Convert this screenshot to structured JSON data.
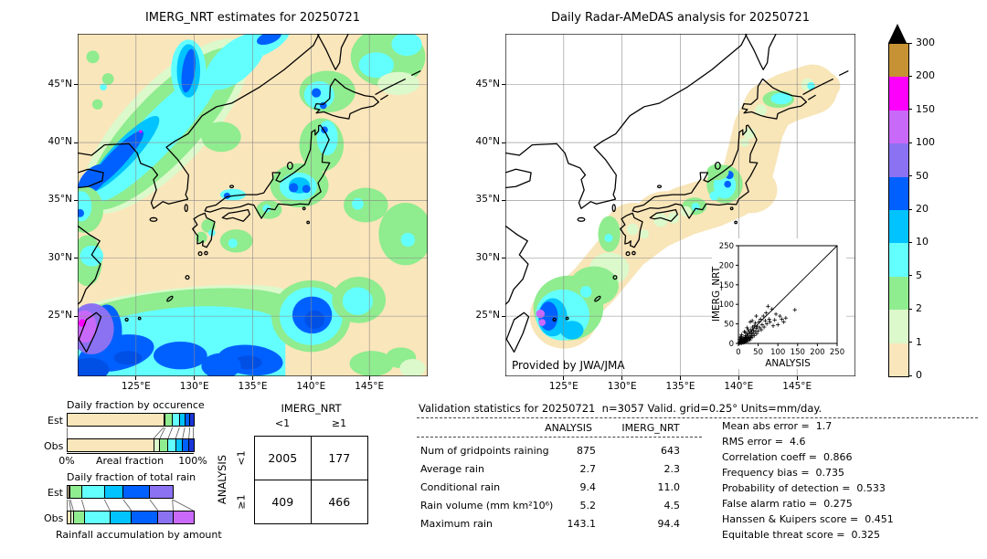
{
  "palette": {
    "wheat": "#FAE6BB",
    "palegreen": "#DCF9CB",
    "green": "#8FEC8F",
    "cyan": "#63FFFF",
    "deepcyan": "#00C3FF",
    "blue": "#0060FF",
    "navy": "#1A35D6",
    "purple": "#8B72F2",
    "orchid": "#C969FA",
    "magenta": "#FC00FC",
    "gold": "#C69233",
    "overflow": "#000000"
  },
  "maps": {
    "left_title": "IMERG_NRT estimates for 20250721",
    "right_title": "Daily Radar-AMeDAS analysis for 20250721",
    "credit": "Provided by JWA/JMA",
    "x_ticks": [
      "125°E",
      "130°E",
      "135°E",
      "140°E",
      "145°E"
    ],
    "y_ticks": [
      "45°N",
      "40°N",
      "35°N",
      "30°N",
      "25°N"
    ]
  },
  "colorbar": {
    "levels": [
      "0",
      "1",
      "2",
      "5",
      "10",
      "20",
      "50",
      "100",
      "150",
      "200",
      "300"
    ],
    "colors": [
      "wheat",
      "palegreen",
      "green",
      "cyan",
      "deepcyan",
      "blue",
      "purple",
      "orchid",
      "magenta",
      "gold"
    ]
  },
  "inset": {
    "xlabel": "ANALYSIS",
    "ylabel": "IMERG_NRT",
    "tick_labels": [
      "0",
      "50",
      "100",
      "150",
      "200",
      "250"
    ]
  },
  "occurrence": {
    "title": "Daily fraction by occurence",
    "row_labels": [
      "Est",
      "Obs"
    ],
    "axis_left": "0%",
    "axis_label": "Areal fraction",
    "axis_right": "100%"
  },
  "total_rain": {
    "title": "Daily fraction of total rain",
    "row_labels": [
      "Est",
      "Obs"
    ],
    "footer": "Rainfall accumulation by amount"
  },
  "contingency": {
    "col_title": "IMERG_NRT",
    "row_title": "ANALYSIS",
    "col_labels": [
      "<1",
      "≥1"
    ],
    "row_labels": [
      "<1",
      "≥1"
    ]
  },
  "stats": {
    "header": "Validation statistics for 20250721  n=3057 Valid. grid=0.25° Units=mm/day.",
    "col1": "ANALYSIS",
    "col2": "IMERG_NRT"
  },
  "chart_data": [
    {
      "type": "heatmap",
      "subtype": "filled-contour-map",
      "title": "IMERG_NRT estimates for 20250721",
      "units": "mm/day",
      "x_tick_labels": [
        "125°E",
        "130°E",
        "135°E",
        "140°E",
        "145°E"
      ],
      "y_tick_labels": [
        "45°N",
        "40°N",
        "35°N",
        "30°N",
        "25°N"
      ],
      "levels": [
        0,
        1,
        2,
        5,
        10,
        20,
        50,
        100,
        150,
        200,
        300
      ],
      "level_colors": [
        "wheat",
        "palegreen",
        "green",
        "cyan",
        "deepcyan",
        "blue",
        "purple",
        "orchid",
        "magenta",
        "gold"
      ],
      "overflow_color": "black"
    },
    {
      "type": "heatmap",
      "subtype": "filled-contour-map",
      "title": "Daily Radar-AMeDAS analysis for 20250721",
      "units": "mm/day",
      "credit": "Provided by JWA/JMA",
      "x_tick_labels": [
        "125°E",
        "130°E",
        "135°E",
        "140°E",
        "145°E"
      ],
      "y_tick_labels": [
        "45°N",
        "40°N",
        "35°N",
        "30°N",
        "25°N"
      ],
      "levels": [
        0,
        1,
        2,
        5,
        10,
        20,
        50,
        100,
        150,
        200,
        300
      ]
    },
    {
      "type": "scatter",
      "xlabel": "ANALYSIS",
      "ylabel": "IMERG_NRT",
      "xlim": [
        0,
        250
      ],
      "ylim": [
        0,
        250
      ],
      "diagonal": true,
      "marker": "+",
      "points": [
        [
          2,
          1
        ],
        [
          3,
          4
        ],
        [
          4,
          2
        ],
        [
          5,
          6
        ],
        [
          5,
          1
        ],
        [
          6,
          3
        ],
        [
          7,
          8
        ],
        [
          8,
          5
        ],
        [
          8,
          1
        ],
        [
          9,
          12
        ],
        [
          10,
          3
        ],
        [
          10,
          8
        ],
        [
          11,
          6
        ],
        [
          12,
          2
        ],
        [
          12,
          14
        ],
        [
          13,
          9
        ],
        [
          14,
          5
        ],
        [
          15,
          12
        ],
        [
          15,
          3
        ],
        [
          16,
          8
        ],
        [
          17,
          15
        ],
        [
          18,
          6
        ],
        [
          18,
          20
        ],
        [
          19,
          11
        ],
        [
          20,
          4
        ],
        [
          20,
          16
        ],
        [
          21,
          9
        ],
        [
          22,
          24
        ],
        [
          23,
          14
        ],
        [
          24,
          7
        ],
        [
          25,
          19
        ],
        [
          26,
          12
        ],
        [
          27,
          30
        ],
        [
          28,
          16
        ],
        [
          29,
          9
        ],
        [
          30,
          24
        ],
        [
          31,
          14
        ],
        [
          32,
          35
        ],
        [
          33,
          20
        ],
        [
          34,
          28
        ],
        [
          35,
          16
        ],
        [
          36,
          42
        ],
        [
          37,
          25
        ],
        [
          38,
          33
        ],
        [
          40,
          20
        ],
        [
          40,
          45
        ],
        [
          42,
          30
        ],
        [
          43,
          52
        ],
        [
          45,
          38
        ],
        [
          46,
          25
        ],
        [
          48,
          44
        ],
        [
          50,
          32
        ],
        [
          52,
          55
        ],
        [
          54,
          40
        ],
        [
          56,
          62
        ],
        [
          58,
          35
        ],
        [
          60,
          48
        ],
        [
          63,
          70
        ],
        [
          65,
          42
        ],
        [
          68,
          58
        ],
        [
          70,
          78
        ],
        [
          72,
          50
        ],
        [
          75,
          95
        ],
        [
          78,
          62
        ],
        [
          80,
          55
        ],
        [
          85,
          88
        ],
        [
          88,
          45
        ],
        [
          92,
          60
        ],
        [
          95,
          75
        ],
        [
          100,
          48
        ],
        [
          105,
          70
        ],
        [
          110,
          62
        ],
        [
          115,
          55
        ],
        [
          120,
          65
        ],
        [
          143,
          86
        ],
        [
          30,
          55
        ],
        [
          22,
          40
        ],
        [
          15,
          30
        ],
        [
          8,
          22
        ],
        [
          45,
          70
        ],
        [
          35,
          58
        ],
        [
          5,
          15
        ],
        [
          3,
          10
        ],
        [
          7,
          18
        ],
        [
          25,
          35
        ],
        [
          18,
          28
        ]
      ]
    },
    {
      "type": "bar",
      "stacked": true,
      "orientation": "horizontal",
      "title": "Daily fraction by occurence",
      "categories": [
        "Est",
        "Obs"
      ],
      "xlabel": "Areal fraction",
      "xlim_labels": [
        "0%",
        "100%"
      ],
      "series_colors": [
        "wheat",
        "palegreen",
        "green",
        "cyan",
        "deepcyan",
        "blue",
        "navy"
      ],
      "est": [
        0.765,
        0.012,
        0.058,
        0.055,
        0.042,
        0.04,
        0.028
      ],
      "obs": [
        0.685,
        0.05,
        0.065,
        0.06,
        0.055,
        0.05,
        0.035
      ]
    },
    {
      "type": "bar",
      "stacked": true,
      "orientation": "horizontal",
      "title": "Daily fraction of total rain",
      "categories": [
        "Est",
        "Obs"
      ],
      "xlabel": "Rainfall accumulation by amount",
      "series_colors": [
        "wheat",
        "palegreen",
        "green",
        "cyan",
        "deepcyan",
        "blue",
        "purple",
        "orchid"
      ],
      "est": [
        0.015,
        0.01,
        0.09,
        0.18,
        0.15,
        0.21,
        0.18,
        0.0
      ],
      "obs": [
        0.03,
        0.02,
        0.09,
        0.2,
        0.17,
        0.21,
        0.12,
        0.16
      ]
    },
    {
      "type": "table",
      "name": "contingency",
      "col_group": "IMERG_NRT",
      "row_group": "ANALYSIS",
      "col_labels": [
        "<1",
        "≥1"
      ],
      "row_labels": [
        "<1",
        "≥1"
      ],
      "values": [
        [
          2005,
          177
        ],
        [
          409,
          466
        ]
      ]
    },
    {
      "type": "table",
      "name": "validation-statistics",
      "title": "Validation statistics for 20250721  n=3057 Valid. grid=0.25° Units=mm/day.",
      "columns": [
        "ANALYSIS",
        "IMERG_NRT"
      ],
      "rows": [
        {
          "label": "Num of gridpoints raining",
          "a": "875",
          "b": "643"
        },
        {
          "label": "Average rain",
          "a": "2.7",
          "b": "2.3"
        },
        {
          "label": "Conditional rain",
          "a": "9.4",
          "b": "11.0"
        },
        {
          "label": "Rain volume (mm km²10⁶)",
          "a": "5.2",
          "b": "4.5"
        },
        {
          "label": "Maximum rain",
          "a": "143.1",
          "b": "94.4"
        }
      ],
      "metrics": [
        {
          "label": "Mean abs error",
          "value": "1.7"
        },
        {
          "label": "RMS error",
          "value": "4.6"
        },
        {
          "label": "Correlation coeff",
          "value": "0.866"
        },
        {
          "label": "Frequency bias",
          "value": "0.735"
        },
        {
          "label": "Probability of detection",
          "value": "0.533"
        },
        {
          "label": "False alarm ratio",
          "value": "0.275"
        },
        {
          "label": "Hanssen & Kuipers score",
          "value": "0.451"
        },
        {
          "label": "Equitable threat score",
          "value": "0.325"
        }
      ]
    }
  ]
}
